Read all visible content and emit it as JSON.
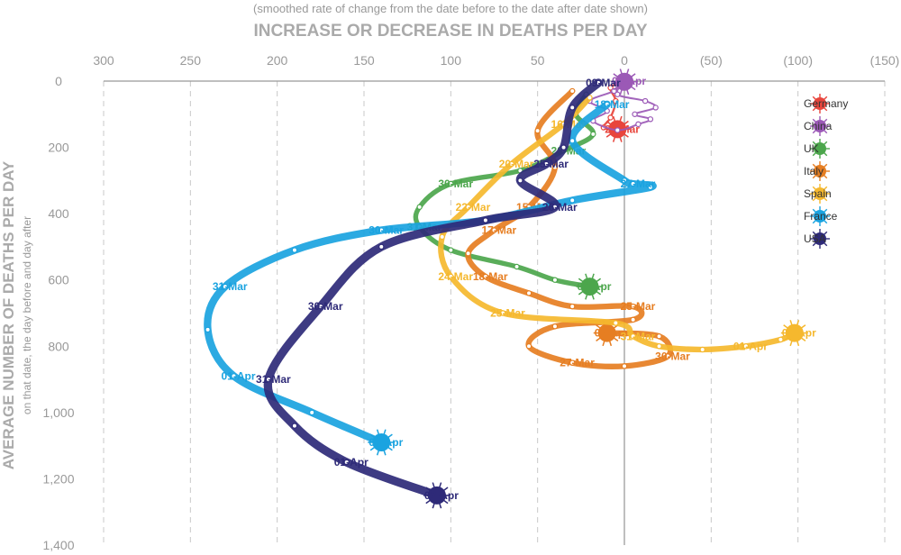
{
  "chart_data": {
    "type": "line",
    "title": "INCREASE OR DECREASE IN DEATHS PER DAY",
    "subtitle": "(smoothed rate of change from the date before to the date after date shown)",
    "xlabel": "INCREASE OR DECREASE IN DEATHS PER DAY",
    "ylabel": "AVERAGE NUMBER OF DEATHS PER DAY",
    "ylabel_sub": "on that date, the day before and day after",
    "xlim": [
      -150,
      300
    ],
    "ylim": [
      0,
      1400
    ],
    "xticks": [
      "(150)",
      "(100)",
      "(50)",
      "0",
      "50",
      "100",
      "150",
      "200",
      "250",
      "300"
    ],
    "yticks": [
      "0",
      "200",
      "400",
      "600",
      "800",
      "1,000",
      "1,200",
      "1,400"
    ],
    "xtick_values": [
      -150,
      -100,
      -50,
      0,
      50,
      100,
      150,
      200,
      250,
      300
    ],
    "ytick_values": [
      0,
      200,
      400,
      600,
      800,
      1000,
      1200,
      1400
    ],
    "orientation": "mirrored (image appears horizontally flipped)",
    "grid": true,
    "legend_position": "right",
    "series": [
      {
        "name": "Germany",
        "color": "#e8453c",
        "points": [
          [
            0,
            2
          ],
          [
            8,
            20
          ],
          [
            5,
            60
          ],
          [
            8,
            110
          ],
          [
            12,
            140
          ],
          [
            4,
            145
          ]
        ],
        "labels": [
          {
            "i": 5,
            "text": "21-Mar"
          }
        ]
      },
      {
        "name": "China",
        "color": "#9b59b6",
        "points": [
          [
            0,
            0
          ],
          [
            4,
            40
          ],
          [
            -12,
            60
          ],
          [
            -18,
            80
          ],
          [
            -6,
            100
          ],
          [
            -15,
            115
          ],
          [
            -8,
            130
          ],
          [
            4,
            148
          ],
          [
            18,
            120
          ],
          [
            10,
            90
          ],
          [
            20,
            60
          ],
          [
            6,
            30
          ],
          [
            0,
            2
          ]
        ],
        "labels": [
          {
            "i": 0,
            "text": "02-Apr"
          }
        ]
      },
      {
        "name": "UK",
        "color": "#4ca64c",
        "points": [
          [
            22,
            40
          ],
          [
            28,
            100
          ],
          [
            18,
            160
          ],
          [
            35,
            210
          ],
          [
            60,
            270
          ],
          [
            100,
            310
          ],
          [
            118,
            380
          ],
          [
            118,
            440
          ],
          [
            100,
            510
          ],
          [
            62,
            560
          ],
          [
            40,
            600
          ],
          [
            20,
            620
          ]
        ],
        "labels": [
          {
            "i": 3,
            "text": "28-Mar"
          },
          {
            "i": 5,
            "text": "30-Mar"
          },
          {
            "i": 7,
            "text": "31-Mar"
          },
          {
            "i": 11,
            "text": "02-Apr"
          }
        ]
      },
      {
        "name": "Italy",
        "color": "#e67e22",
        "points": [
          [
            30,
            30
          ],
          [
            50,
            150
          ],
          [
            40,
            260
          ],
          [
            55,
            380
          ],
          [
            75,
            450
          ],
          [
            90,
            520
          ],
          [
            80,
            590
          ],
          [
            55,
            640
          ],
          [
            30,
            680
          ],
          [
            -5,
            680
          ],
          [
            -5,
            720
          ],
          [
            40,
            740
          ],
          [
            55,
            800
          ],
          [
            30,
            850
          ],
          [
            0,
            860
          ],
          [
            -25,
            830
          ],
          [
            -20,
            770
          ],
          [
            10,
            760
          ]
        ],
        "labels": [
          {
            "i": 3,
            "text": "15-Mar"
          },
          {
            "i": 4,
            "text": "17-Mar"
          },
          {
            "i": 6,
            "text": "18-Mar"
          },
          {
            "i": 9,
            "text": "25-Mar"
          },
          {
            "i": 13,
            "text": "27-Mar"
          },
          {
            "i": 15,
            "text": "30-Mar"
          },
          {
            "i": 17,
            "text": "02-Apr"
          }
        ]
      },
      {
        "name": "Spain",
        "color": "#f5b82e",
        "points": [
          [
            20,
            50
          ],
          [
            35,
            130
          ],
          [
            65,
            250
          ],
          [
            90,
            380
          ],
          [
            105,
            470
          ],
          [
            100,
            590
          ],
          [
            70,
            700
          ],
          [
            5,
            730
          ],
          [
            -5,
            770
          ],
          [
            -20,
            800
          ],
          [
            -45,
            810
          ],
          [
            -70,
            800
          ],
          [
            -90,
            780
          ],
          [
            -98,
            760
          ]
        ],
        "labels": [
          {
            "i": 1,
            "text": "16-Mar"
          },
          {
            "i": 2,
            "text": "20-Mar"
          },
          {
            "i": 3,
            "text": "22-Mar"
          },
          {
            "i": 5,
            "text": "24-Mar"
          },
          {
            "i": 6,
            "text": "25-Mar"
          },
          {
            "i": 8,
            "text": "31-Mar"
          },
          {
            "i": 11,
            "text": "01-Apr"
          },
          {
            "i": 13,
            "text": "02-Apr"
          }
        ]
      },
      {
        "name": "France",
        "color": "#1aa3e0",
        "points": [
          [
            10,
            70
          ],
          [
            30,
            180
          ],
          [
            0,
            300
          ],
          [
            -5,
            310
          ],
          [
            -15,
            320
          ],
          [
            30,
            360
          ],
          [
            80,
            420
          ],
          [
            140,
            450
          ],
          [
            190,
            510
          ],
          [
            230,
            620
          ],
          [
            240,
            750
          ],
          [
            225,
            890
          ],
          [
            180,
            1000
          ],
          [
            140,
            1090
          ]
        ],
        "labels": [
          {
            "i": 0,
            "text": "18-Mar"
          },
          {
            "i": 3,
            "text": "27-Mar"
          },
          {
            "i": 7,
            "text": "30-Mar"
          },
          {
            "i": 9,
            "text": "31-Mar"
          },
          {
            "i": 11,
            "text": "01-Apr"
          },
          {
            "i": 13,
            "text": "02-Apr"
          }
        ]
      },
      {
        "name": "USA",
        "color": "#2e2a78",
        "points": [
          [
            15,
            5
          ],
          [
            30,
            80
          ],
          [
            35,
            200
          ],
          [
            45,
            250
          ],
          [
            60,
            300
          ],
          [
            40,
            380
          ],
          [
            80,
            420
          ],
          [
            140,
            500
          ],
          [
            175,
            680
          ],
          [
            205,
            900
          ],
          [
            190,
            1040
          ],
          [
            160,
            1150
          ],
          [
            108,
            1250
          ]
        ],
        "labels": [
          {
            "i": 0,
            "text": "09-Mar"
          },
          {
            "i": 3,
            "text": "25-Mar"
          },
          {
            "i": 5,
            "text": "26-Mar"
          },
          {
            "i": 8,
            "text": "30-Mar"
          },
          {
            "i": 9,
            "text": "31-Mar"
          },
          {
            "i": 11,
            "text": "01-Apr"
          },
          {
            "i": 12,
            "text": "02-Apr"
          }
        ]
      }
    ],
    "legend": [
      "Germany",
      "China",
      "UK",
      "Italy",
      "Spain",
      "France",
      "USA"
    ]
  }
}
